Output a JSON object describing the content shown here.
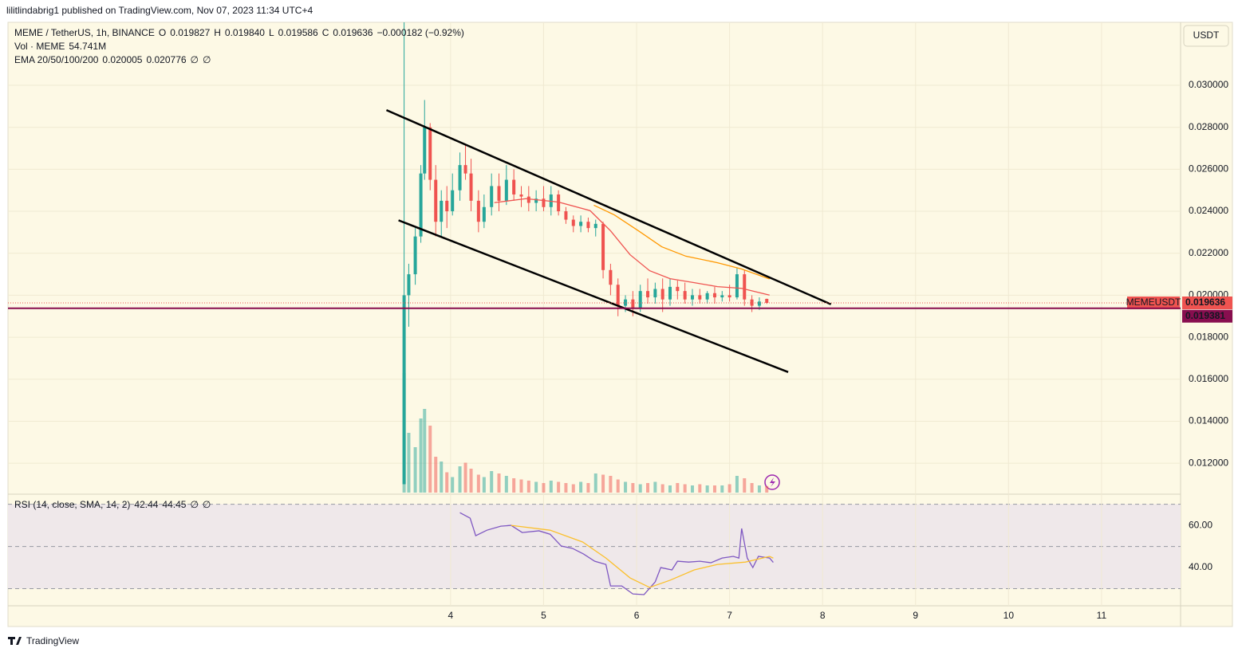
{
  "header": {
    "published": "lilitlindabrig1 published on TradingView.com, Nov 07, 2023 11:34 UTC+4",
    "currency": "USDT",
    "footer": "TradingView"
  },
  "chart_data": [
    {
      "type": "candlestick",
      "legend": {
        "title": "MEME / TetherUS, 1h, BINANCE",
        "ohlc": [
          {
            "letter": "O",
            "text": "0.019827"
          },
          {
            "letter": "H",
            "text": "0.019840"
          },
          {
            "letter": "L",
            "text": "0.019586"
          },
          {
            "letter": "C",
            "text": "0.019636"
          }
        ],
        "change": "−0.000182 (−0.92%)",
        "volume_title": "Vol · MEME",
        "volume_value": "54.741M",
        "ema_title": "EMA 20/50/100/200",
        "ema_values": [
          "0.020005",
          "0.020776",
          "∅",
          "∅"
        ]
      },
      "candles": {
        "x": [
          3.5,
          3.55,
          3.62,
          3.68,
          3.72,
          3.78,
          3.84,
          3.9,
          3.96,
          4.02,
          4.1,
          4.16,
          4.22,
          4.3,
          4.36,
          4.44,
          4.52,
          4.6,
          4.68,
          4.76,
          4.84,
          4.92,
          5.0,
          5.08,
          5.16,
          5.24,
          5.32,
          5.4,
          5.48,
          5.56,
          5.64,
          5.72,
          5.8,
          5.88,
          5.96,
          6.04,
          6.12,
          6.2,
          6.28,
          6.36,
          6.44,
          6.52,
          6.6,
          6.68,
          6.76,
          6.84,
          6.92,
          7.0,
          7.08,
          7.16,
          7.24,
          7.32,
          7.4
        ],
        "open": [
          0.011,
          0.02,
          0.021,
          0.0228,
          0.0258,
          0.028,
          0.0255,
          0.0235,
          0.0245,
          0.024,
          0.025,
          0.0262,
          0.0258,
          0.0245,
          0.0235,
          0.0242,
          0.0252,
          0.0245,
          0.0255,
          0.0248,
          0.0247,
          0.0244,
          0.0246,
          0.0242,
          0.0248,
          0.024,
          0.0236,
          0.0233,
          0.0235,
          0.0232,
          0.0234,
          0.0212,
          0.0205,
          0.0195,
          0.0198,
          0.0194,
          0.0202,
          0.0199,
          0.0203,
          0.0198,
          0.0204,
          0.0202,
          0.0198,
          0.02,
          0.0198,
          0.0201,
          0.0199,
          0.02,
          0.0199,
          0.021,
          0.0198,
          0.0195,
          0.019827
        ],
        "high": [
          0.033,
          0.0215,
          0.0232,
          0.0262,
          0.0293,
          0.0282,
          0.0262,
          0.025,
          0.0252,
          0.0258,
          0.0268,
          0.0272,
          0.0265,
          0.025,
          0.0248,
          0.0258,
          0.0258,
          0.0262,
          0.026,
          0.0252,
          0.0252,
          0.025,
          0.0252,
          0.0252,
          0.025,
          0.0242,
          0.0238,
          0.0238,
          0.0237,
          0.0236,
          0.0235,
          0.0215,
          0.0208,
          0.02,
          0.0202,
          0.0205,
          0.0208,
          0.0206,
          0.0208,
          0.0208,
          0.0207,
          0.0206,
          0.0203,
          0.0203,
          0.0202,
          0.0204,
          0.0202,
          0.0205,
          0.0213,
          0.0212,
          0.02,
          0.0199,
          0.01984
        ],
        "low": [
          0.011,
          0.0185,
          0.0205,
          0.0225,
          0.0255,
          0.025,
          0.0228,
          0.0228,
          0.0232,
          0.0238,
          0.0245,
          0.0255,
          0.024,
          0.023,
          0.0232,
          0.0238,
          0.024,
          0.0243,
          0.0245,
          0.0242,
          0.024,
          0.024,
          0.024,
          0.0238,
          0.0238,
          0.0234,
          0.023,
          0.023,
          0.023,
          0.0228,
          0.0208,
          0.02,
          0.019,
          0.0192,
          0.019,
          0.0192,
          0.0196,
          0.0196,
          0.0192,
          0.0195,
          0.0198,
          0.0196,
          0.0195,
          0.0196,
          0.0196,
          0.0196,
          0.0197,
          0.0197,
          0.0198,
          0.0195,
          0.0192,
          0.0193,
          0.019586
        ],
        "close": [
          0.02,
          0.021,
          0.0228,
          0.0258,
          0.028,
          0.0255,
          0.0235,
          0.0245,
          0.024,
          0.025,
          0.0262,
          0.0258,
          0.0245,
          0.0235,
          0.0242,
          0.0252,
          0.0245,
          0.0255,
          0.0248,
          0.0247,
          0.0244,
          0.0246,
          0.0242,
          0.0248,
          0.024,
          0.0236,
          0.0233,
          0.0235,
          0.0232,
          0.0234,
          0.0212,
          0.0205,
          0.0195,
          0.0198,
          0.0194,
          0.0202,
          0.0199,
          0.0203,
          0.0198,
          0.0204,
          0.0202,
          0.0198,
          0.02,
          0.0198,
          0.0201,
          0.0199,
          0.02,
          0.0199,
          0.021,
          0.0198,
          0.0195,
          0.0197,
          0.019636
        ],
        "up_color": "#26a69a",
        "down_color": "#ef5350"
      },
      "volume": {
        "values": [
          1000,
          500,
          380,
          620,
          700,
          560,
          300,
          260,
          170,
          130,
          220,
          250,
          200,
          150,
          130,
          180,
          160,
          140,
          120,
          110,
          100,
          90,
          80,
          100,
          90,
          80,
          70,
          90,
          80,
          160,
          150,
          140,
          110,
          90,
          80,
          70,
          80,
          90,
          70,
          60,
          80,
          70,
          60,
          70,
          60,
          60,
          60,
          70,
          140,
          120,
          80,
          60,
          54.741
        ]
      },
      "series": [
        {
          "color": "#ef5350",
          "x": [
            4.47,
            4.81,
            5.16,
            5.5,
            5.72,
            5.93,
            6.14,
            6.36,
            6.62,
            6.87,
            7.13,
            7.43
          ],
          "values": [
            0.02441,
            0.0246,
            0.02444,
            0.02403,
            0.02307,
            0.02193,
            0.02117,
            0.02079,
            0.0206,
            0.02041,
            0.02033,
            0.020005
          ]
        },
        {
          "color": "#ff9800",
          "x": [
            5.54,
            5.76,
            6.02,
            6.27,
            6.53,
            6.87,
            7.13,
            7.43
          ],
          "values": [
            0.02429,
            0.02383,
            0.02307,
            0.02231,
            0.02186,
            0.02155,
            0.02125,
            0.020776
          ]
        }
      ],
      "trendlines": [
        {
          "color": "#000000",
          "x": [
            3.31,
            8.09
          ],
          "values": [
            0.02882,
            0.01957
          ]
        },
        {
          "color": "#000000",
          "x": [
            3.44,
            7.63
          ],
          "values": [
            0.02357,
            0.01634
          ]
        }
      ],
      "price_lines": [
        {
          "value": 0.019636,
          "label": "0.019636",
          "name": "MEMEUSDT",
          "color": "#ef5350",
          "line_style": "dotted"
        },
        {
          "value": 0.019381,
          "label": "0.019381",
          "color": "#880e4f",
          "line_style": "solid"
        }
      ],
      "xlim": [
        -0.76,
        11.85
      ],
      "xticks": [
        4,
        5,
        6,
        7,
        8,
        9,
        10,
        11
      ],
      "ylim": [
        0.0106,
        0.033
      ],
      "yticks": [
        {
          "value": 0.012,
          "label": "0.012000"
        },
        {
          "value": 0.014,
          "label": "0.014000"
        },
        {
          "value": 0.016,
          "label": "0.016000"
        },
        {
          "value": 0.018,
          "label": "0.018000"
        },
        {
          "value": 0.02,
          "label": "0.020000"
        },
        {
          "value": 0.022,
          "label": "0.022000"
        },
        {
          "value": 0.024,
          "label": "0.024000"
        },
        {
          "value": 0.026,
          "label": "0.026000"
        },
        {
          "value": 0.028,
          "label": "0.028000"
        },
        {
          "value": 0.03,
          "label": "0.030000"
        }
      ],
      "grid": true
    },
    {
      "type": "line",
      "legend": {
        "title": "RSI (14, close, SMA, 14, 2)",
        "values": [
          "42.44",
          "44.45",
          "∅",
          "∅"
        ]
      },
      "series": [
        {
          "color": "#7e57c2",
          "x": [
            4.1,
            4.21,
            4.27,
            4.39,
            4.54,
            4.65,
            4.77,
            4.95,
            5.07,
            5.19,
            5.31,
            5.43,
            5.55,
            5.67,
            5.72,
            5.84,
            5.96,
            6.08,
            6.2,
            6.26,
            6.38,
            6.44,
            6.56,
            6.68,
            6.8,
            6.92,
            7.04,
            7.1,
            7.13,
            7.19,
            7.25,
            7.31,
            7.43,
            7.47
          ],
          "values": [
            66.0,
            63.4,
            55.1,
            57.7,
            59.6,
            60.0,
            56.6,
            57.4,
            55.8,
            50.2,
            49.1,
            46.4,
            43.0,
            41.5,
            31.3,
            31.3,
            27.5,
            27.2,
            33.2,
            40.0,
            38.9,
            43.0,
            42.6,
            43.0,
            42.3,
            44.5,
            45.3,
            44.5,
            58.5,
            44.5,
            40.0,
            45.3,
            44.5,
            42.44
          ]
        },
        {
          "color": "#fbc02d",
          "x": [
            4.65,
            5.07,
            5.42,
            5.67,
            5.93,
            6.14,
            6.36,
            6.62,
            6.87,
            7.17,
            7.43,
            7.47
          ],
          "values": [
            60.0,
            57.7,
            52.1,
            44.5,
            35.1,
            30.6,
            34.0,
            38.9,
            41.5,
            42.6,
            45.3,
            44.45
          ]
        }
      ],
      "bands": [
        30,
        50,
        70
      ],
      "band_fill": "#efe8ea",
      "ylim": [
        21.9,
        74.0
      ],
      "yticks": [
        {
          "value": 40,
          "label": "40.00"
        },
        {
          "value": 60,
          "label": "60.00"
        }
      ]
    }
  ]
}
